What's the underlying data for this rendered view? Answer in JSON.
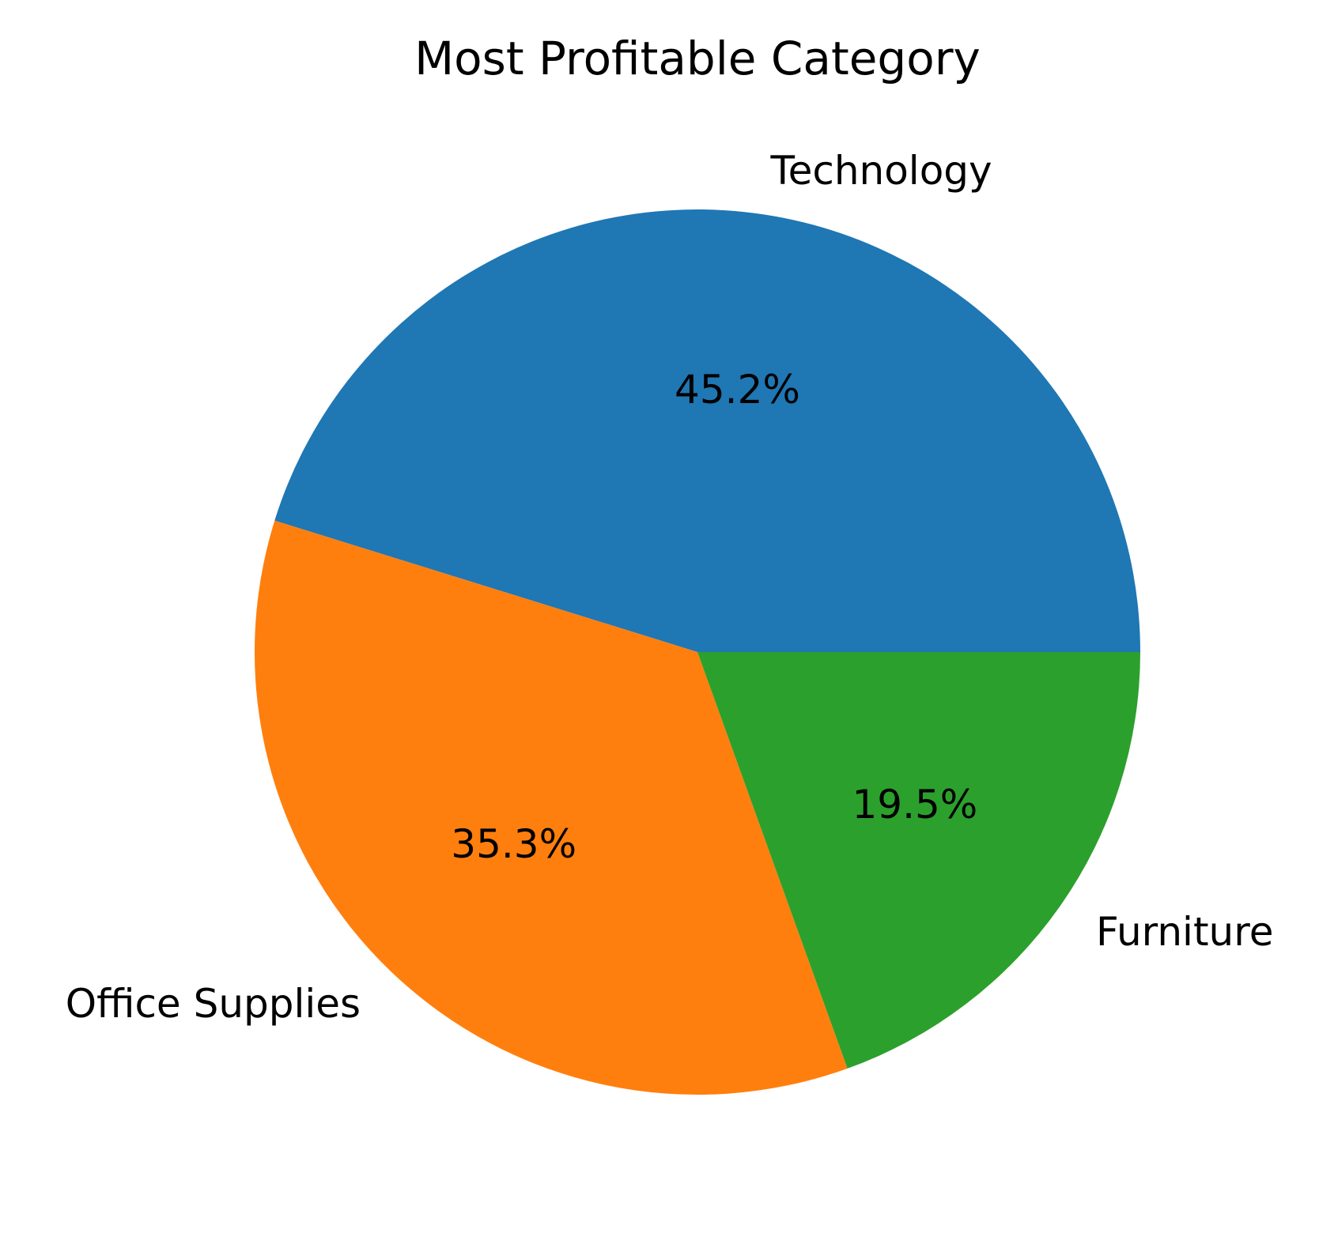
{
  "chart_data": {
    "type": "pie",
    "title": "Most Profitable Category",
    "slices": [
      {
        "label": "Technology",
        "value": 45.2,
        "pct_label": "45.2%",
        "color": "#1f77b4"
      },
      {
        "label": "Office Supplies",
        "value": 35.3,
        "pct_label": "35.3%",
        "color": "#ff7f0e"
      },
      {
        "label": "Furniture",
        "value": 19.5,
        "pct_label": "19.5%",
        "color": "#2ca02c"
      }
    ],
    "start_angle_deg": 0,
    "direction": "counterclockwise"
  }
}
